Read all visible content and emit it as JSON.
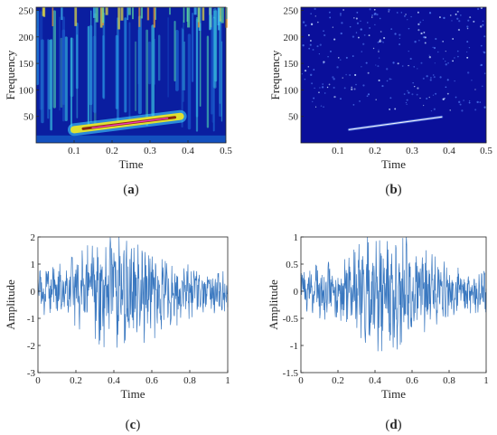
{
  "chart_data": [
    {
      "id": "a",
      "type": "heatmap",
      "caption_letter": "a",
      "xlabel": "Time",
      "ylabel": "Frequency",
      "xlim": [
        0,
        0.5
      ],
      "ylim": [
        0,
        256
      ],
      "xticks": [
        0.1,
        0.2,
        0.3,
        0.4,
        0.5
      ],
      "yticks": [
        50,
        100,
        150,
        200,
        250
      ],
      "colormap": "jet",
      "background_color": "#0a1ea0",
      "ridge": {
        "t_start": 0.1,
        "t_end": 0.38,
        "f_start": 25,
        "f_end": 50
      }
    },
    {
      "id": "b",
      "type": "heatmap",
      "caption_letter": "b",
      "xlabel": "Time",
      "ylabel": "Frequency",
      "xlim": [
        0,
        0.5
      ],
      "ylim": [
        0,
        256
      ],
      "xticks": [
        0.1,
        0.2,
        0.3,
        0.4,
        0.5
      ],
      "yticks": [
        50,
        100,
        150,
        200,
        250
      ],
      "colormap": "jet",
      "background_color": "#0a0f9a",
      "ridge": {
        "t_start": 0.13,
        "t_end": 0.38,
        "f_start": 25,
        "f_end": 49
      }
    },
    {
      "id": "c",
      "type": "line",
      "caption_letter": "c",
      "xlabel": "Time",
      "ylabel": "Amplitude",
      "xlim": [
        0,
        1
      ],
      "ylim": [
        -3,
        2
      ],
      "xticks": [
        0,
        0.2,
        0.4,
        0.6,
        0.8,
        1
      ],
      "yticks": [
        -3,
        -2,
        -1,
        0,
        1,
        2
      ],
      "line_color": "#3a78c0",
      "series": [
        {
          "amplitude_peak": 2.0,
          "amplitude_trough": -2.1
        }
      ]
    },
    {
      "id": "d",
      "type": "line",
      "caption_letter": "d",
      "xlabel": "Time",
      "ylabel": "Amplitude",
      "xlim": [
        0,
        1
      ],
      "ylim": [
        -1.5,
        1
      ],
      "xticks": [
        0,
        0.2,
        0.4,
        0.6,
        0.8,
        1
      ],
      "yticks": [
        -1.5,
        -1,
        -0.5,
        0,
        0.5,
        1
      ],
      "line_color": "#3a78c0",
      "series": [
        {
          "amplitude_peak": 1.0,
          "amplitude_trough": -1.15
        }
      ]
    }
  ]
}
